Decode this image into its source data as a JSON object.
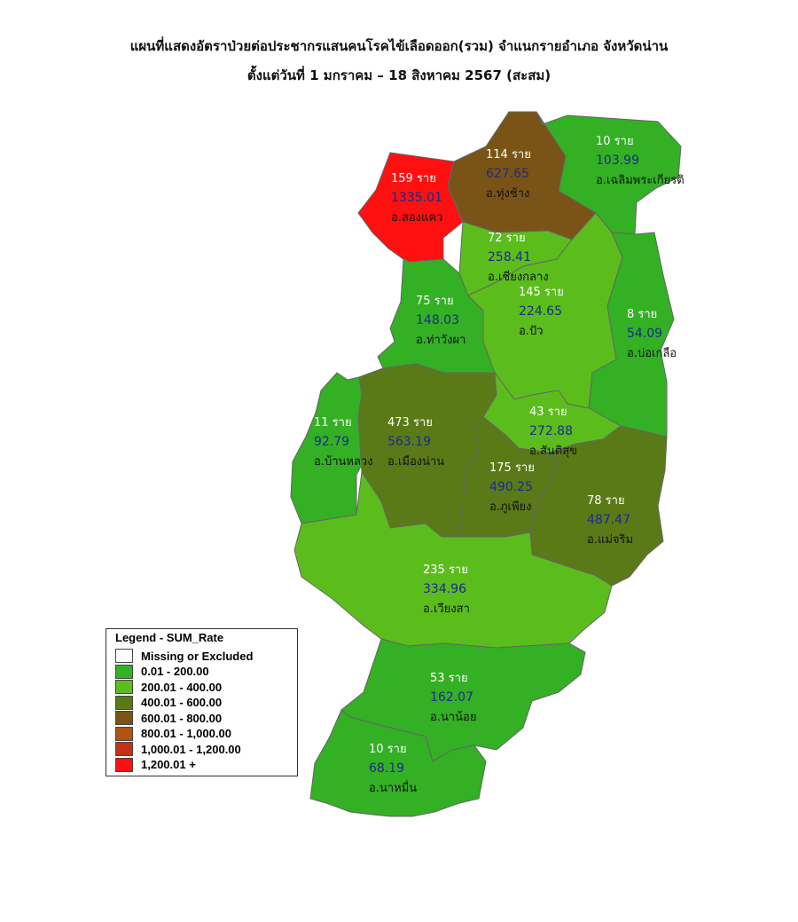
{
  "title_line1": "แผนที่แสดงอัตราป่วยต่อประชากรแสนคนโรคไข้เลือดออก(รวม) จำแนกรายอำเภอ จังหวัดน่าน",
  "title_line2": "ตั้งแต่วันที่  1 มกราคม – 18 สิงหาคม 2567 (สะสม)",
  "legend": {
    "title": "Legend - SUM_Rate",
    "items": [
      {
        "label": "Missing or Excluded",
        "color": "#ffffff"
      },
      {
        "label": "0.01 - 200.00",
        "color": "#33b024"
      },
      {
        "label": "200.01 - 400.00",
        "color": "#5bbd1c"
      },
      {
        "label": "400.01 - 600.00",
        "color": "#5a7a18"
      },
      {
        "label": "600.01 - 800.00",
        "color": "#7a5416"
      },
      {
        "label": "800.01 - 1,000.00",
        "color": "#b35312"
      },
      {
        "label": "1,000.01 - 1,200.00",
        "color": "#c53016"
      },
      {
        "label": "1,200.01 +",
        "color": "#ff1010"
      }
    ]
  },
  "districts": [
    {
      "name": "อ.สองแคว",
      "cases": "159 ราย",
      "rate": "1335.01",
      "color": "#ff1010"
    },
    {
      "name": "อ.ทุ่งช้าง",
      "cases": "114 ราย",
      "rate": "627.65",
      "color": "#7a5416"
    },
    {
      "name": "อ.เฉลิมพระเกียรติ",
      "cases": "10 ราย",
      "rate": "103.99",
      "color": "#33b024"
    },
    {
      "name": "อ.เชียงกลาง",
      "cases": "72 ราย",
      "rate": "258.41",
      "color": "#5bbd1c"
    },
    {
      "name": "อ.ท่าวังผา",
      "cases": "75 ราย",
      "rate": "148.03",
      "color": "#33b024"
    },
    {
      "name": "อ.ปัว",
      "cases": "145 ราย",
      "rate": "224.65",
      "color": "#5bbd1c"
    },
    {
      "name": "อ.บ่อเกลือ",
      "cases": "8 ราย",
      "rate": "54.09",
      "color": "#33b024"
    },
    {
      "name": "อ.บ้านหลวง",
      "cases": "11 ราย",
      "rate": "92.79",
      "color": "#33b024"
    },
    {
      "name": "อ.เมืองน่าน",
      "cases": "473 ราย",
      "rate": "563.19",
      "color": "#5a7a18"
    },
    {
      "name": "อ.สันติสุข",
      "cases": "43 ราย",
      "rate": "272.88",
      "color": "#5bbd1c"
    },
    {
      "name": "อ.ภูเพียง",
      "cases": "175 ราย",
      "rate": "490.25",
      "color": "#5a7a18"
    },
    {
      "name": "อ.แม่จริม",
      "cases": "78 ราย",
      "rate": "487.47",
      "color": "#5a7a18"
    },
    {
      "name": "อ.เวียงสา",
      "cases": "235 ราย",
      "rate": "334.96",
      "color": "#5bbd1c"
    },
    {
      "name": "อ.นาน้อย",
      "cases": "53 ราย",
      "rate": "162.07",
      "color": "#33b024"
    },
    {
      "name": "อ.นาหมื่น",
      "cases": "10 ราย",
      "rate": "68.19",
      "color": "#33b024"
    }
  ]
}
